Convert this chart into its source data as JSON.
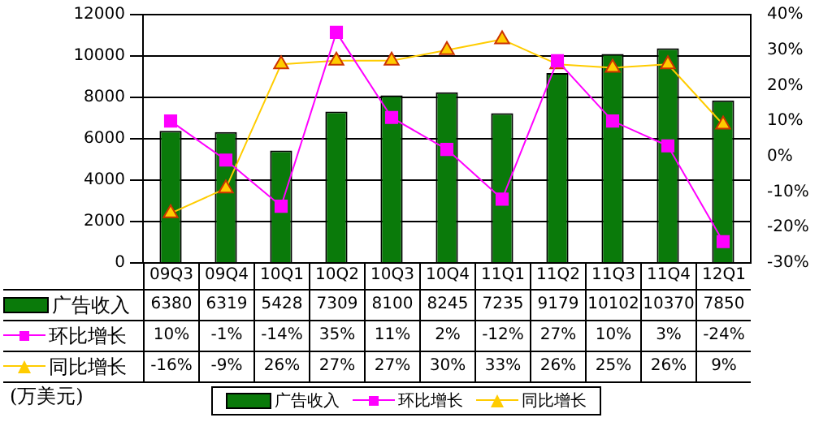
{
  "chart_data": {
    "type": "bar",
    "categories": [
      "09Q3",
      "09Q4",
      "10Q1",
      "10Q2",
      "10Q3",
      "10Q4",
      "11Q1",
      "11Q2",
      "11Q3",
      "11Q4",
      "12Q1"
    ],
    "series": [
      {
        "name": "广告收入",
        "color": "#0a7a0a",
        "values": [
          6380,
          6319,
          5428,
          7309,
          8100,
          8245,
          7235,
          9179,
          10102,
          10370,
          7850
        ],
        "value_labels": [
          "6380",
          "6319",
          "5428",
          "7309",
          "8100",
          "8245",
          "7235",
          "9179",
          "10102",
          "10370",
          "7850"
        ]
      },
      {
        "name": "环比增长",
        "type": "line",
        "axis": "y2",
        "marker": "square",
        "color": "#ff00ff",
        "values": [
          10,
          -1,
          -14,
          35,
          11,
          2,
          -12,
          27,
          10,
          3,
          -24
        ],
        "value_labels": [
          "10%",
          "-1%",
          "-14%",
          "35%",
          "11%",
          "2%",
          "-12%",
          "27%",
          "10%",
          "3%",
          "-24%"
        ]
      },
      {
        "name": "同比增长",
        "type": "line",
        "axis": "y2",
        "marker": "triangle",
        "color": "#ffcc00",
        "values": [
          -16,
          -9,
          26,
          27,
          27,
          30,
          33,
          26,
          25,
          26,
          9
        ],
        "value_labels": [
          "-16%",
          "-9%",
          "26%",
          "27%",
          "27%",
          "30%",
          "33%",
          "26%",
          "25%",
          "26%",
          "9%"
        ]
      }
    ],
    "ylim": [
      0,
      12000
    ],
    "yticks": [
      0,
      2000,
      4000,
      6000,
      8000,
      10000,
      12000
    ],
    "y2lim": [
      -30,
      40
    ],
    "y2ticks": [
      {
        "value": -30,
        "label": "-30%"
      },
      {
        "value": -20,
        "label": "-20%"
      },
      {
        "value": -10,
        "label": "-10%"
      },
      {
        "value": 0,
        "label": "0%"
      },
      {
        "value": 10,
        "label": "10%"
      },
      {
        "value": 20,
        "label": "20%"
      },
      {
        "value": 30,
        "label": "30%"
      },
      {
        "value": 40,
        "label": "40%"
      }
    ],
    "grid": "y",
    "legend": "bottom",
    "line_style": "solid",
    "annotations": [
      "(万美元)"
    ]
  }
}
